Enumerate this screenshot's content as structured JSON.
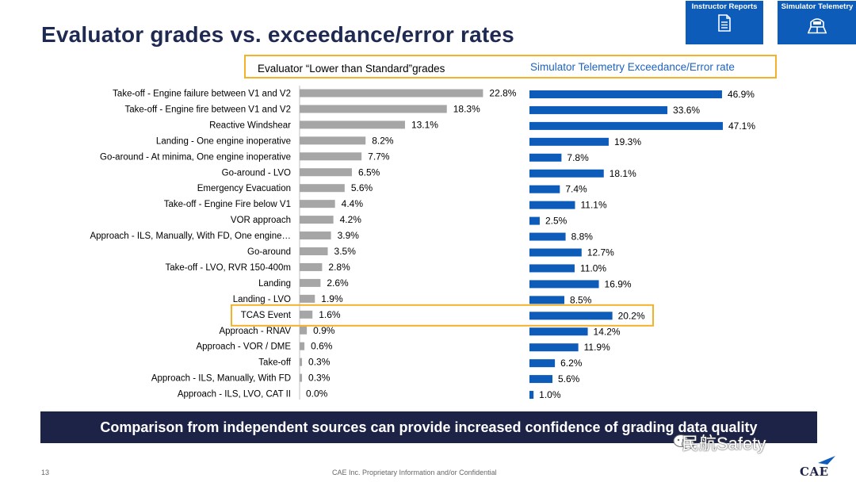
{
  "slide": {
    "title": "Evaluator grades vs. exceedance/error rates",
    "banner": "Comparison from independent sources can provide increased confidence of grading data quality",
    "page_number": "13",
    "footer_notice": "CAE Inc. Proprietary Information and/or Confidential",
    "logo_text": "CAE",
    "watermark": "民航Safety"
  },
  "top_tiles": [
    {
      "label": "Instructor Reports",
      "icon": "document-icon"
    },
    {
      "label": "Simulator Telemetry",
      "icon": "simulator-icon"
    }
  ],
  "colors": {
    "grey_bar": "#a6a6a6",
    "blue_bar": "#0d5cba",
    "highlight": "#f4b12a",
    "banner_bg": "#1d2346",
    "title": "#1f2a52"
  },
  "chart_data": {
    "type": "bar",
    "orientation": "horizontal",
    "highlighted_category": "TCAS Event",
    "categories": [
      "Take-off - Engine failure between V1 and V2",
      "Take-off - Engine fire between V1 and V2",
      "Reactive Windshear",
      "Landing - One engine inoperative",
      "Go-around - At minima, One engine inoperative",
      "Go-around - LVO",
      "Emergency Evacuation",
      "Take-off - Engine Fire below V1",
      "VOR approach",
      "Approach - ILS, Manually, With FD, One engine…",
      "Go-around",
      "Take-off - LVO, RVR 150-400m",
      "Landing",
      "Landing - LVO",
      "TCAS Event",
      "Approach - RNAV",
      "Approach - VOR / DME",
      "Take-off",
      "Approach - ILS, Manually, With FD",
      "Approach - ILS, LVO, CAT II"
    ],
    "series": [
      {
        "name": "Evaluator “Lower than Standard”grades",
        "color": "#a6a6a6",
        "values": [
          22.8,
          18.3,
          13.1,
          8.2,
          7.7,
          6.5,
          5.6,
          4.4,
          4.2,
          3.9,
          3.5,
          2.8,
          2.6,
          1.9,
          1.6,
          0.9,
          0.6,
          0.3,
          0.3,
          0.0
        ],
        "labels": [
          "22.8%",
          "18.3%",
          "13.1%",
          "8.2%",
          "7.7%",
          "6.5%",
          "5.6%",
          "4.4%",
          "4.2%",
          "3.9%",
          "3.5%",
          "2.8%",
          "2.6%",
          "1.9%",
          "1.6%",
          "0.9%",
          "0.6%",
          "0.3%",
          "0.3%",
          "0.0%"
        ]
      },
      {
        "name": "Simulator Telemetry Exceedance/Error rate",
        "color": "#0d5cba",
        "values": [
          46.9,
          33.6,
          47.1,
          19.3,
          7.8,
          18.1,
          7.4,
          11.1,
          2.5,
          8.8,
          12.7,
          11.0,
          16.9,
          8.5,
          20.2,
          14.2,
          11.9,
          6.2,
          5.6,
          1.0
        ],
        "labels": [
          "46.9%",
          "33.6%",
          "47.1%",
          "19.3%",
          "7.8%",
          "18.1%",
          "7.4%",
          "11.1%",
          "2.5%",
          "8.8%",
          "12.7%",
          "11.0%",
          "16.9%",
          "8.5%",
          "20.2%",
          "14.2%",
          "11.9%",
          "6.2%",
          "5.6%",
          "1.0%"
        ]
      }
    ]
  }
}
